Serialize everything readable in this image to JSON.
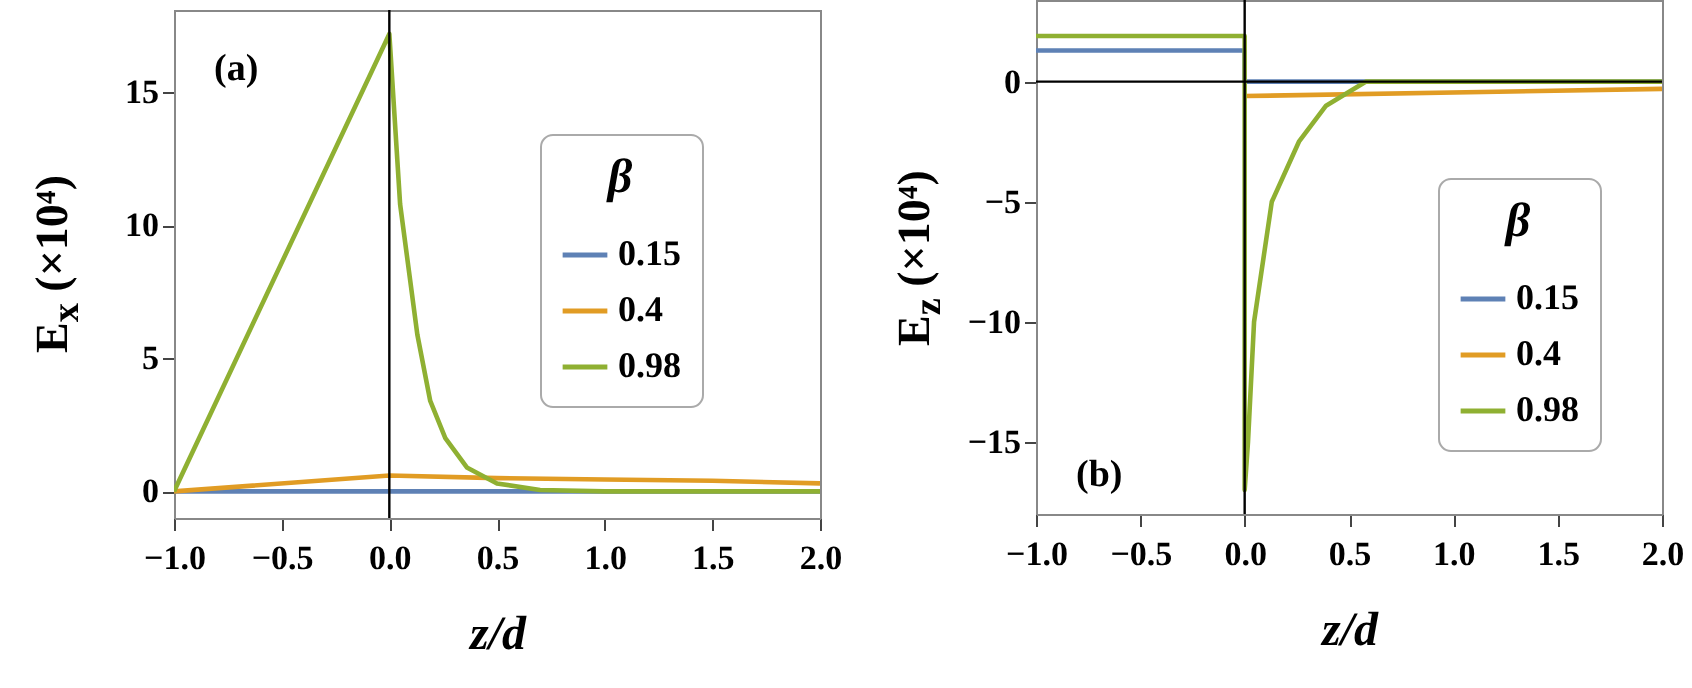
{
  "chart_data": [
    {
      "type": "line",
      "xlabel": "z/d",
      "ylabel": "E$_{x}$ (×10⁴)",
      "legend_title": "β",
      "legend": "right",
      "annotations": [
        "(a)"
      ],
      "grid": false,
      "marker": "none",
      "line_style": "solid",
      "xlim": [
        -1,
        2
      ],
      "ylim": [
        -1,
        18.1
      ],
      "xticks": [
        {
          "value": -1,
          "label": "−1.0"
        },
        {
          "value": -0.5,
          "label": "−0.5"
        },
        {
          "value": 0,
          "label": "0.0"
        },
        {
          "value": 0.5,
          "label": "0.5"
        },
        {
          "value": 1,
          "label": "1.0"
        },
        {
          "value": 1.5,
          "label": "1.5"
        },
        {
          "value": 2,
          "label": "2.0"
        }
      ],
      "yticks": [
        0,
        5,
        10,
        15
      ],
      "ref_lines": [
        {
          "axis": "x",
          "value": 0,
          "color": "#000000"
        }
      ],
      "series": [
        {
          "name": "0.15",
          "color": "#5e81b5",
          "x": [
            -1,
            0,
            2
          ],
          "values": [
            0,
            0,
            0
          ]
        },
        {
          "name": "0.4",
          "color": "#e19c24",
          "x": [
            -1,
            0,
            0.5,
            1,
            1.5,
            2
          ],
          "values": [
            0,
            0.6,
            0.5,
            0.45,
            0.4,
            0.3
          ]
        },
        {
          "name": "0.98",
          "color": "#8fb032",
          "x": [
            -1,
            0,
            0.05,
            0.13,
            0.19,
            0.26,
            0.36,
            0.5,
            0.7,
            1,
            2
          ],
          "values": [
            0,
            17.2,
            10.8,
            5.9,
            3.4,
            2,
            0.9,
            0.3,
            0.05,
            0,
            0
          ]
        }
      ]
    },
    {
      "type": "line",
      "xlabel": "z/d",
      "ylabel": "E$_{z}$ (×10⁴)",
      "legend_title": "β",
      "legend": "bottom right",
      "annotations": [
        "(b)"
      ],
      "grid": false,
      "marker": "none",
      "line_style": "solid",
      "xlim": [
        -1,
        2
      ],
      "ylim": [
        -18,
        3.4
      ],
      "xticks": [
        {
          "value": -1,
          "label": "−1.0"
        },
        {
          "value": -0.5,
          "label": "−0.5"
        },
        {
          "value": 0,
          "label": "0.0"
        },
        {
          "value": 0.5,
          "label": "0.5"
        },
        {
          "value": 1,
          "label": "1.0"
        },
        {
          "value": 1.5,
          "label": "1.5"
        },
        {
          "value": 2,
          "label": "2.0"
        }
      ],
      "yticks": [
        0,
        {
          "value": -5,
          "label": "−5"
        },
        {
          "value": -10,
          "label": "−10"
        },
        {
          "value": -15,
          "label": "−15"
        }
      ],
      "ref_lines": [
        {
          "axis": "x",
          "value": 0,
          "color": "#000000"
        },
        {
          "axis": "y",
          "value": 0,
          "color": "#000000"
        }
      ],
      "series": [
        {
          "name": "0.15",
          "color": "#5e81b5",
          "x": [
            -1,
            0,
            0,
            2
          ],
          "values": [
            1.3,
            1.3,
            0,
            0
          ]
        },
        {
          "name": "0.4",
          "color": "#e19c24",
          "x": [
            0,
            2
          ],
          "values": [
            -0.6,
            -0.3
          ]
        },
        {
          "name": "0.98",
          "color": "#8fb032",
          "x": [
            -1,
            0,
            0,
            0.016,
            0.045,
            0.13,
            0.26,
            0.39,
            0.58,
            0.8,
            2
          ],
          "values": [
            1.9,
            1.9,
            -17,
            -15,
            -10,
            -5,
            -2.5,
            -1,
            0,
            0,
            0
          ]
        }
      ]
    }
  ]
}
